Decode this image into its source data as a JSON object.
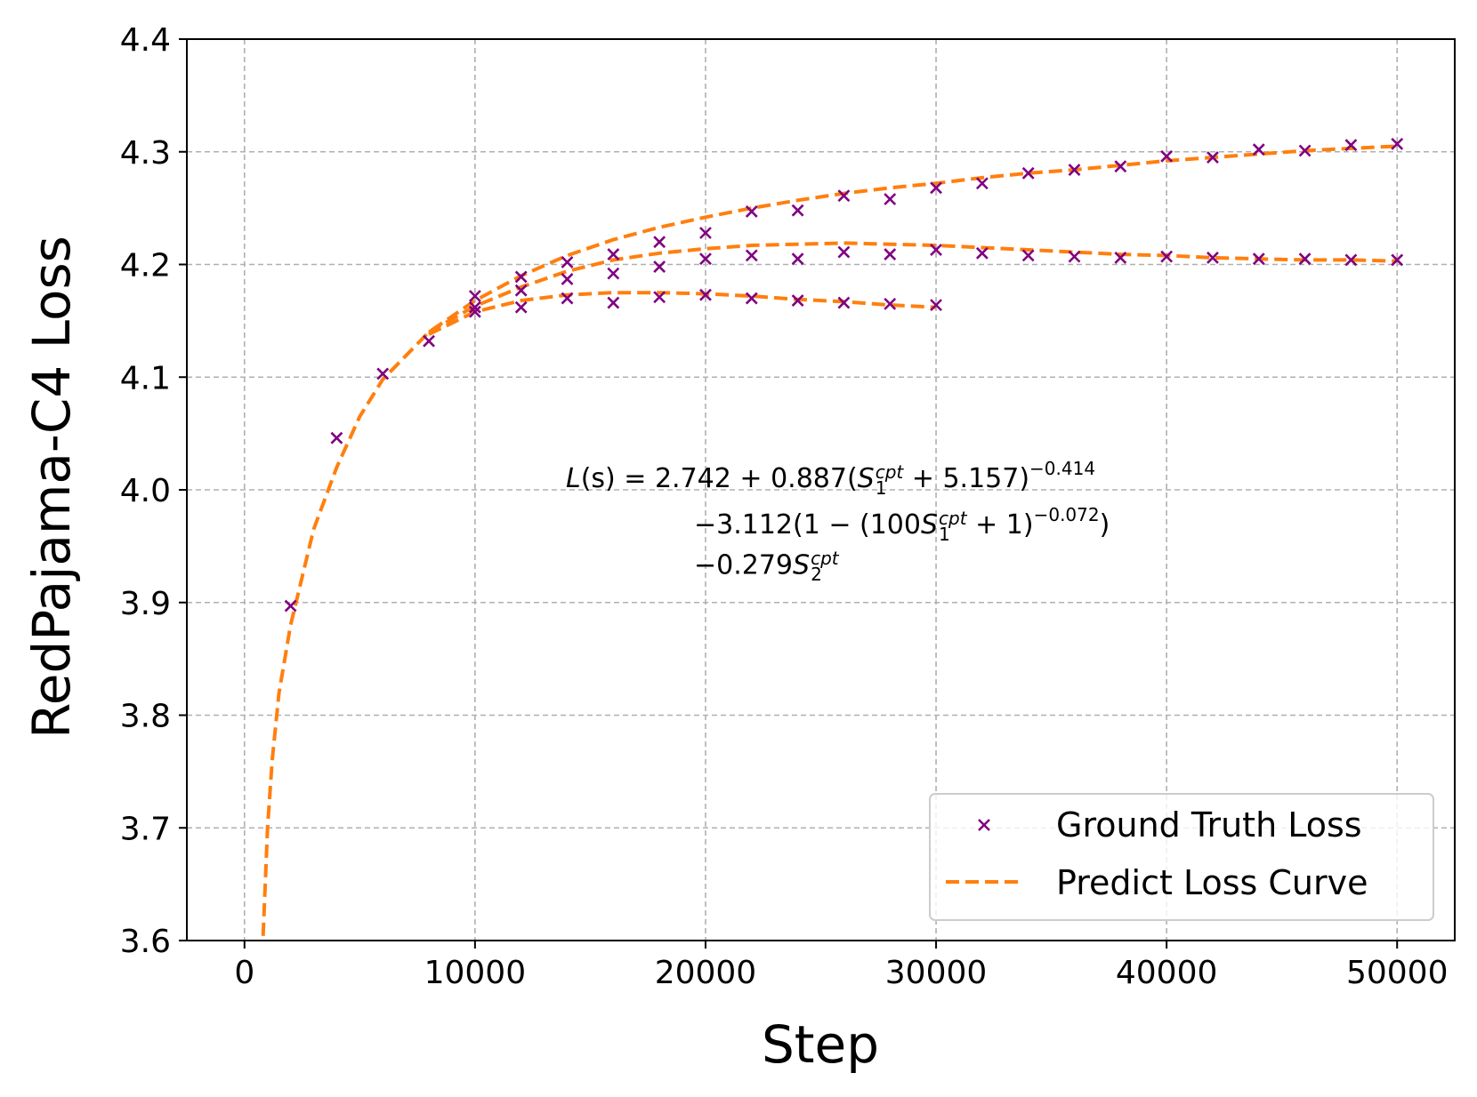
{
  "chart_data": {
    "type": "scatter",
    "xlabel": "Step",
    "ylabel": "RedPajama-C4 Loss",
    "xlim": [
      -2500,
      52500
    ],
    "ylim": [
      3.6,
      4.4
    ],
    "xticks": [
      0,
      10000,
      20000,
      30000,
      40000,
      50000
    ],
    "xtick_labels": [
      "0",
      "10000",
      "20000",
      "30000",
      "40000",
      "50000"
    ],
    "yticks": [
      3.6,
      3.7,
      3.8,
      3.9,
      4.0,
      4.1,
      4.2,
      4.3,
      4.4
    ],
    "ytick_labels": [
      "3.6",
      "3.7",
      "3.8",
      "3.9",
      "4.0",
      "4.1",
      "4.2",
      "4.3",
      "4.4"
    ],
    "grid": true,
    "legend_position": "lower-right",
    "legend": [
      {
        "label": "Ground Truth Loss",
        "marker": "x",
        "color": "#800080"
      },
      {
        "label": "Predict Loss Curve",
        "style": "dashed",
        "color": "#ff7f0e"
      }
    ],
    "colors": {
      "ground_truth": "#800080",
      "predict": "#ff7f0e"
    },
    "annotation": {
      "line1": {
        "lhs": "L",
        "arg": "(s)",
        "eq": " = 2.742 + 0.887(",
        "S": "S",
        "sub": "1",
        "sup": "cpt",
        "rest": " + 5.157)",
        "exp": "−0.414"
      },
      "line2": {
        "pre": "−3.112(1 − (100",
        "S": "S",
        "sub": "1",
        "sup": "cpt",
        "rest": " + 1)",
        "exp": "−0.072",
        "post": ")"
      },
      "line3": {
        "pre": "−0.279",
        "S": "S",
        "sub": "2",
        "sup": "cpt"
      }
    },
    "series": [
      {
        "name": "Ground Truth Loss",
        "kind": "scatter",
        "points": [
          [
            2000,
            3.897
          ],
          [
            4000,
            4.046
          ],
          [
            6000,
            4.103
          ],
          [
            8000,
            4.132
          ],
          [
            10000,
            4.172
          ],
          [
            12000,
            4.189
          ],
          [
            14000,
            4.202
          ],
          [
            16000,
            4.209
          ],
          [
            18000,
            4.22
          ],
          [
            20000,
            4.228
          ],
          [
            22000,
            4.247
          ],
          [
            24000,
            4.248
          ],
          [
            26000,
            4.261
          ],
          [
            28000,
            4.258
          ],
          [
            30000,
            4.268
          ],
          [
            32000,
            4.272
          ],
          [
            34000,
            4.281
          ],
          [
            36000,
            4.284
          ],
          [
            38000,
            4.287
          ],
          [
            40000,
            4.296
          ],
          [
            42000,
            4.295
          ],
          [
            44000,
            4.302
          ],
          [
            46000,
            4.301
          ],
          [
            48000,
            4.306
          ],
          [
            50000,
            4.307
          ],
          [
            10000,
            4.162
          ],
          [
            12000,
            4.177
          ],
          [
            14000,
            4.187
          ],
          [
            16000,
            4.192
          ],
          [
            18000,
            4.198
          ],
          [
            20000,
            4.205
          ],
          [
            22000,
            4.208
          ],
          [
            24000,
            4.205
          ],
          [
            26000,
            4.211
          ],
          [
            28000,
            4.209
          ],
          [
            30000,
            4.213
          ],
          [
            32000,
            4.21
          ],
          [
            34000,
            4.208
          ],
          [
            36000,
            4.207
          ],
          [
            38000,
            4.206
          ],
          [
            40000,
            4.207
          ],
          [
            42000,
            4.206
          ],
          [
            44000,
            4.205
          ],
          [
            46000,
            4.205
          ],
          [
            48000,
            4.204
          ],
          [
            50000,
            4.204
          ],
          [
            10000,
            4.158
          ],
          [
            12000,
            4.162
          ],
          [
            14000,
            4.17
          ],
          [
            16000,
            4.166
          ],
          [
            18000,
            4.171
          ],
          [
            20000,
            4.173
          ],
          [
            22000,
            4.17
          ],
          [
            24000,
            4.168
          ],
          [
            26000,
            4.166
          ],
          [
            28000,
            4.165
          ],
          [
            30000,
            4.164
          ]
        ]
      },
      {
        "name": "Predict Loss Curve",
        "kind": "line",
        "segments": [
          [
            [
              700,
              3.5
            ],
            [
              800,
              3.6
            ],
            [
              1000,
              3.7
            ],
            [
              1200,
              3.76
            ],
            [
              1500,
              3.82
            ],
            [
              2000,
              3.88
            ],
            [
              3000,
              3.965
            ],
            [
              4000,
              4.02
            ],
            [
              5000,
              4.065
            ],
            [
              6000,
              4.098
            ],
            [
              8000,
              4.14
            ],
            [
              10000,
              4.168
            ],
            [
              12000,
              4.19
            ],
            [
              14000,
              4.208
            ],
            [
              16000,
              4.222
            ],
            [
              18000,
              4.233
            ],
            [
              20000,
              4.242
            ],
            [
              22000,
              4.25
            ],
            [
              24000,
              4.257
            ],
            [
              26000,
              4.263
            ],
            [
              28000,
              4.268
            ],
            [
              30000,
              4.272
            ],
            [
              32000,
              4.277
            ],
            [
              34000,
              4.281
            ],
            [
              36000,
              4.284
            ],
            [
              38000,
              4.288
            ],
            [
              40000,
              4.292
            ],
            [
              42000,
              4.295
            ],
            [
              44000,
              4.298
            ],
            [
              46000,
              4.301
            ],
            [
              48000,
              4.303
            ],
            [
              50000,
              4.305
            ]
          ],
          [
            [
              8000,
              4.14
            ],
            [
              10000,
              4.163
            ],
            [
              12000,
              4.18
            ],
            [
              14000,
              4.194
            ],
            [
              16000,
              4.204
            ],
            [
              18000,
              4.21
            ],
            [
              20000,
              4.214
            ],
            [
              22000,
              4.217
            ],
            [
              24000,
              4.218
            ],
            [
              26000,
              4.219
            ],
            [
              28000,
              4.218
            ],
            [
              30000,
              4.217
            ],
            [
              32000,
              4.215
            ],
            [
              34000,
              4.213
            ],
            [
              36000,
              4.211
            ],
            [
              38000,
              4.209
            ],
            [
              40000,
              4.208
            ],
            [
              42000,
              4.206
            ],
            [
              44000,
              4.205
            ],
            [
              46000,
              4.204
            ],
            [
              48000,
              4.204
            ],
            [
              50000,
              4.203
            ]
          ],
          [
            [
              8000,
              4.138
            ],
            [
              10000,
              4.158
            ],
            [
              12000,
              4.168
            ],
            [
              14000,
              4.173
            ],
            [
              16000,
              4.175
            ],
            [
              18000,
              4.175
            ],
            [
              20000,
              4.174
            ],
            [
              22000,
              4.172
            ],
            [
              24000,
              4.169
            ],
            [
              26000,
              4.167
            ],
            [
              28000,
              4.164
            ],
            [
              30000,
              4.162
            ]
          ]
        ]
      }
    ]
  }
}
